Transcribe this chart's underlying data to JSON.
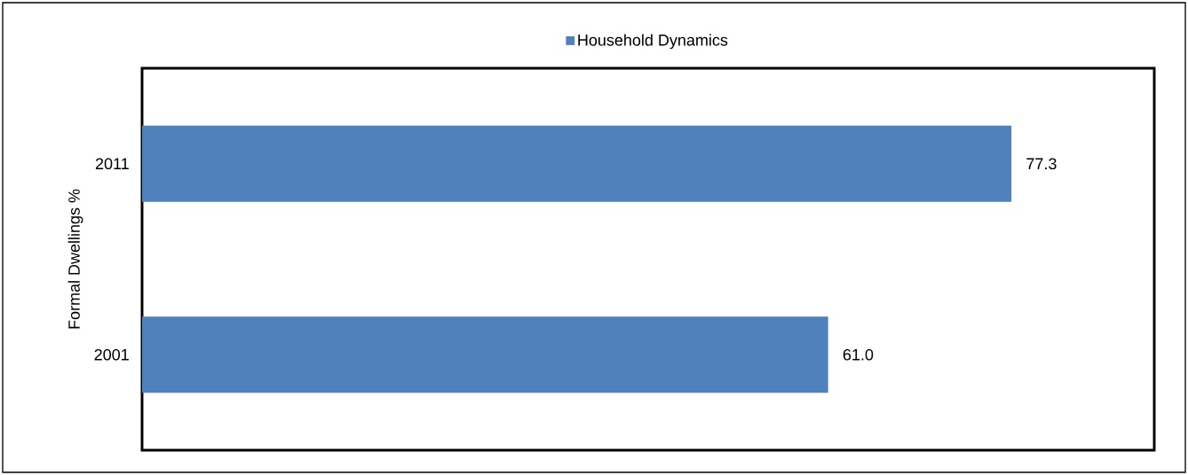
{
  "chart_data": {
    "type": "bar",
    "orientation": "horizontal",
    "categories": [
      "2011",
      "2001"
    ],
    "ylabel": "Formal Dwellings %",
    "series": [
      {
        "name": "Household Dynamics",
        "color": "#4f81bd",
        "values": [
          77.3,
          61.0
        ],
        "value_labels": [
          "77.3",
          "61.0"
        ]
      }
    ],
    "xlim": [
      0,
      90
    ],
    "tick_labels": "y",
    "legend": "top",
    "grid": false
  }
}
